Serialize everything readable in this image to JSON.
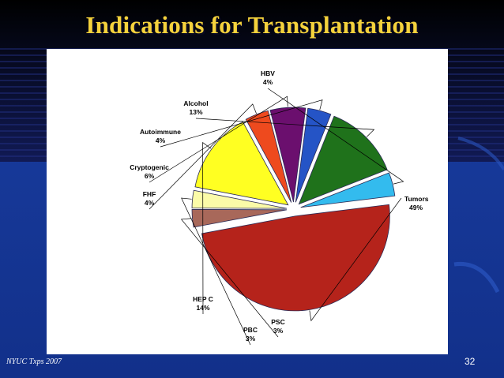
{
  "slide": {
    "title": "Indications for Transplantation",
    "footer_left": "NYUC Txps 2007",
    "page_number": "32"
  },
  "chart_data": {
    "type": "pie",
    "title": "",
    "exploded": true,
    "slices": [
      {
        "label": "Tumors",
        "value": 49,
        "value_label": "49%",
        "color": "#b5231b"
      },
      {
        "label": "PSC",
        "value": 3,
        "value_label": "3%",
        "color": "#a8685a"
      },
      {
        "label": "PBC",
        "value": 3,
        "value_label": "3%",
        "color": "#fbfba8"
      },
      {
        "label": "HEP C",
        "value": 14,
        "value_label": "14%",
        "color": "#ffff22"
      },
      {
        "label": "FHF",
        "value": 4,
        "value_label": "4%",
        "color": "#ee4a1e"
      },
      {
        "label": "Cryptogenic",
        "value": 6,
        "value_label": "6%",
        "color": "#6b0f6e"
      },
      {
        "label": "Autoimmune",
        "value": 4,
        "value_label": "4%",
        "color": "#2554c6"
      },
      {
        "label": "Alcohol",
        "value": 13,
        "value_label": "13%",
        "color": "#1f721b"
      },
      {
        "label": "HBV",
        "value": 4,
        "value_label": "4%",
        "color": "#33bbee"
      }
    ]
  }
}
